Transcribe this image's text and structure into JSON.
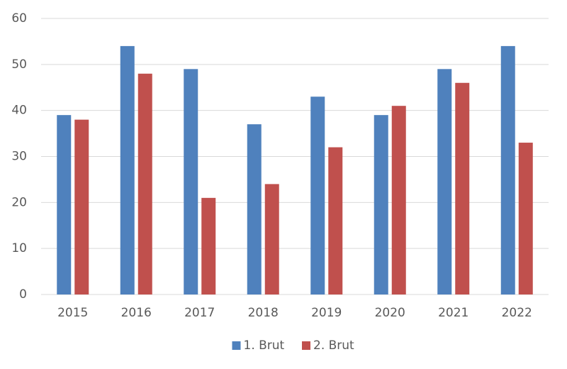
{
  "chart_data": {
    "type": "bar",
    "categories": [
      "2015",
      "2016",
      "2017",
      "2018",
      "2019",
      "2020",
      "2021",
      "2022"
    ],
    "series": [
      {
        "name": "1. Brut",
        "color": "#4f81bd",
        "values": [
          39,
          54,
          49,
          37,
          43,
          39,
          49,
          54
        ]
      },
      {
        "name": "2. Brut",
        "color": "#c0504d",
        "values": [
          38,
          48,
          21,
          24,
          32,
          41,
          46,
          33
        ]
      }
    ],
    "ylim": [
      0,
      60
    ],
    "yticks": [
      0,
      10,
      20,
      30,
      40,
      50,
      60
    ],
    "grid": true,
    "legend": "bottom"
  }
}
